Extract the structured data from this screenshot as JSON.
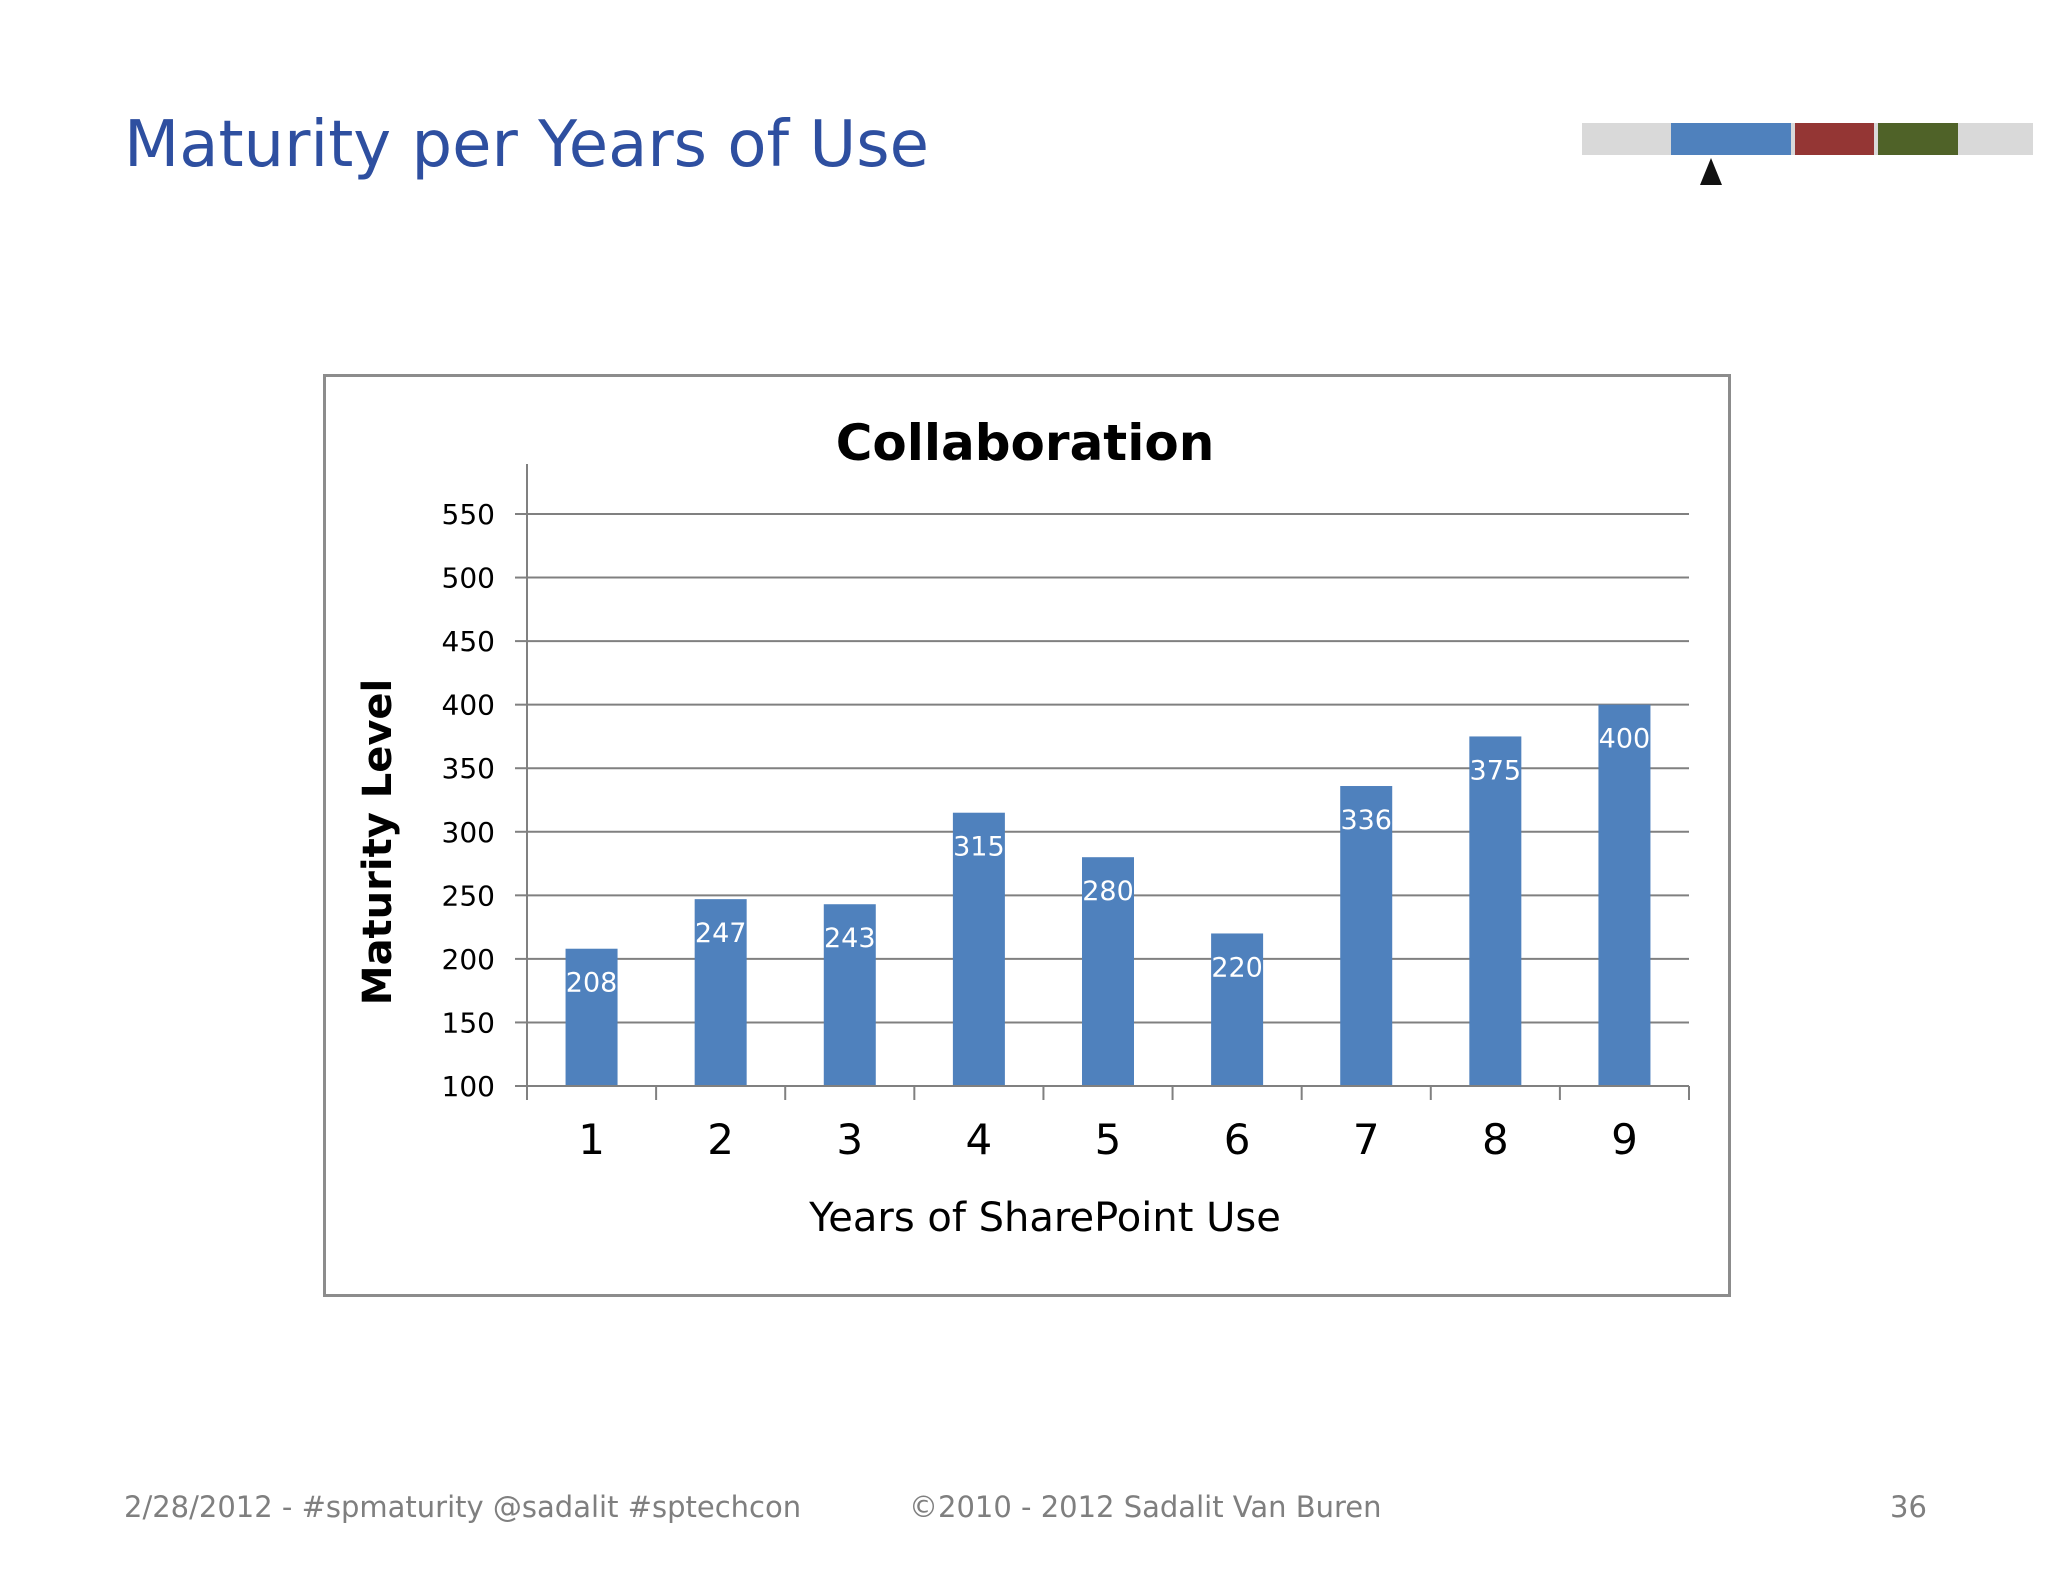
{
  "slide": {
    "title": "Maturity per Years of Use",
    "footer_left": "2/28/2012 - #spmaturity  @sadalit  #sptechcon",
    "footer_center": "©2010 - 2012  Sadalit Van Buren",
    "page_number": "36"
  },
  "progress_strip": {
    "segments": [
      {
        "color": "#4f81bd"
      },
      {
        "color": "#943634"
      },
      {
        "color": "#4f6228"
      }
    ],
    "background": "#d9d9d9",
    "pointer": "pointer-arrow"
  },
  "chart_data": {
    "type": "bar",
    "title": "Collaboration",
    "xlabel": "Years of SharePoint Use",
    "ylabel": "Maturity Level",
    "categories": [
      "1",
      "2",
      "3",
      "4",
      "5",
      "6",
      "7",
      "8",
      "9"
    ],
    "values": [
      208,
      247,
      243,
      315,
      280,
      220,
      336,
      375,
      400
    ],
    "value_labels": [
      "208",
      "247",
      "243",
      "315",
      "280",
      "220",
      "336",
      "375",
      "400"
    ],
    "ylim": [
      100,
      550
    ],
    "yticks": [
      100,
      150,
      200,
      250,
      300,
      350,
      400,
      450,
      500,
      550
    ],
    "ytick_labels": [
      "100",
      "150",
      "200",
      "250",
      "300",
      "350",
      "400",
      "450",
      "500",
      "550"
    ],
    "grid": true,
    "legend": "none",
    "bar_color": "#4f81bd"
  }
}
